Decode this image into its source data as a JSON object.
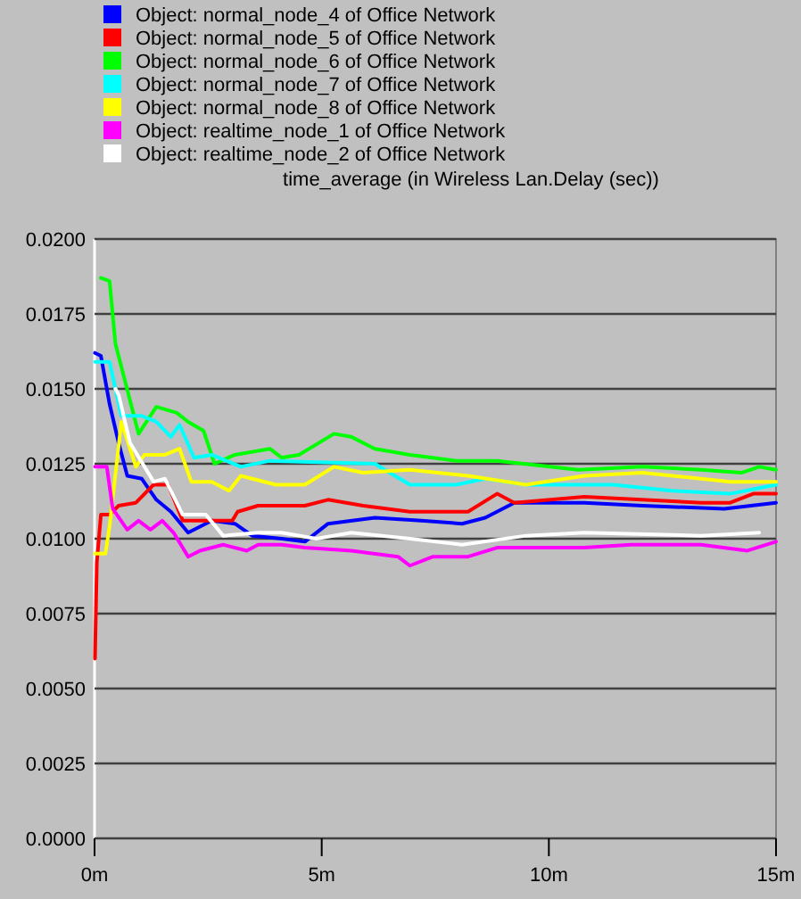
{
  "chart_data": {
    "type": "line",
    "title": "time_average (in Wireless Lan.Delay (sec))",
    "legend": "top",
    "grid": "y",
    "marker": "none",
    "line_style": "solid",
    "xlim": [
      0,
      15
    ],
    "xticks": [
      {
        "value": 0,
        "label": "0m"
      },
      {
        "value": 5,
        "label": "5m"
      },
      {
        "value": 10,
        "label": "10m"
      },
      {
        "value": 15,
        "label": "15m"
      }
    ],
    "ylim": [
      0,
      0.02
    ],
    "yticks": [
      {
        "value": 0,
        "label": "0.0000"
      },
      {
        "value": 0.0025,
        "label": "0.0025"
      },
      {
        "value": 0.005,
        "label": "0.0050"
      },
      {
        "value": 0.0075,
        "label": "0.0075"
      },
      {
        "value": 0.01,
        "label": "0.0100"
      },
      {
        "value": 0.0125,
        "label": "0.0125"
      },
      {
        "value": 0.015,
        "label": "0.0150"
      },
      {
        "value": 0.0175,
        "label": "0.0175"
      },
      {
        "value": 0.02,
        "label": "0.0200"
      }
    ],
    "series": [
      {
        "name": "Object: normal_node_4 of Office Network",
        "color": "#0000ff",
        "x": [
          0.01,
          0.14,
          0.33,
          0.53,
          0.72,
          1.04,
          1.36,
          1.68,
          2.06,
          2.32,
          2.58,
          3.09,
          3.47,
          4.12,
          4.63,
          5.14,
          6.17,
          7.19,
          8.09,
          8.6,
          9.24,
          10.78,
          12.06,
          13.86,
          15
        ],
        "values": [
          0.0162,
          0.0161,
          0.0145,
          0.0132,
          0.0121,
          0.012,
          0.0113,
          0.0109,
          0.0102,
          0.0104,
          0.0106,
          0.0105,
          0.0101,
          0.01,
          0.0099,
          0.0105,
          0.0107,
          0.0106,
          0.0105,
          0.0107,
          0.0112,
          0.0112,
          0.0111,
          0.011,
          0.0112
        ]
      },
      {
        "name": "Object: normal_node_5 of Office Network",
        "color": "#ff0000",
        "x": [
          0.01,
          0.05,
          0.14,
          0.33,
          0.53,
          0.91,
          1.3,
          1.62,
          1.94,
          2.58,
          3.03,
          3.15,
          3.6,
          4.63,
          5.14,
          5.91,
          6.94,
          8.22,
          8.86,
          9.24,
          10.78,
          13.35,
          13.99,
          14.5,
          15
        ],
        "values": [
          0.006,
          0.0092,
          0.0108,
          0.0108,
          0.0111,
          0.0112,
          0.0118,
          0.0118,
          0.0106,
          0.0106,
          0.0106,
          0.0109,
          0.0111,
          0.0111,
          0.0113,
          0.0111,
          0.0109,
          0.0109,
          0.0115,
          0.0112,
          0.0114,
          0.0112,
          0.0112,
          0.0115,
          0.0115
        ]
      },
      {
        "name": "Object: normal_node_6 of Office Network",
        "color": "#00ff00",
        "x": [
          0.14,
          0.33,
          0.46,
          0.97,
          1.36,
          1.81,
          2.06,
          2.4,
          2.64,
          3.09,
          3.86,
          4.12,
          4.5,
          5.27,
          5.65,
          6.17,
          6.94,
          7.96,
          8.86,
          10.65,
          12.06,
          13.35,
          14.24,
          14.63,
          15
        ],
        "values": [
          0.0187,
          0.0186,
          0.0165,
          0.0135,
          0.0144,
          0.0142,
          0.0139,
          0.0136,
          0.0125,
          0.0128,
          0.013,
          0.0127,
          0.0128,
          0.0135,
          0.0134,
          0.013,
          0.0128,
          0.0126,
          0.0126,
          0.0123,
          0.0124,
          0.0123,
          0.0122,
          0.0124,
          0.0123
        ]
      },
      {
        "name": "Object: normal_node_7 of Office Network",
        "color": "#00ffff",
        "x": [
          0.01,
          0.33,
          0.59,
          1.04,
          1.36,
          1.68,
          1.87,
          2.19,
          2.58,
          3.22,
          3.86,
          6.17,
          6.94,
          7.96,
          8.6,
          9.5,
          10.78,
          11.42,
          12.7,
          13.99,
          15
        ],
        "values": [
          0.0159,
          0.0159,
          0.0141,
          0.0141,
          0.0139,
          0.0134,
          0.0138,
          0.0127,
          0.0128,
          0.0124,
          0.0126,
          0.0125,
          0.0118,
          0.0118,
          0.012,
          0.0118,
          0.0118,
          0.0118,
          0.0116,
          0.0115,
          0.0118
        ]
      },
      {
        "name": "Object: normal_node_8 of Office Network",
        "color": "#ffff00",
        "x": [
          0.01,
          0.24,
          0.33,
          0.59,
          0.91,
          1.1,
          1.55,
          1.87,
          2.13,
          2.58,
          2.96,
          3.22,
          3.99,
          4.63,
          5.27,
          5.91,
          6.94,
          8.22,
          9.5,
          10.78,
          12.06,
          13.35,
          13.99,
          15
        ],
        "values": [
          0.0095,
          0.0095,
          0.0104,
          0.0139,
          0.0124,
          0.0128,
          0.0128,
          0.013,
          0.0119,
          0.0119,
          0.0116,
          0.0121,
          0.0118,
          0.0118,
          0.0124,
          0.0122,
          0.0123,
          0.0121,
          0.0118,
          0.0121,
          0.0122,
          0.012,
          0.0119,
          0.0119
        ]
      },
      {
        "name": "Object: realtime_node_1 of Office Network",
        "color": "#ff00ff",
        "x": [
          0.01,
          0.27,
          0.4,
          0.72,
          0.97,
          1.23,
          1.49,
          1.74,
          2.06,
          2.32,
          2.83,
          3.35,
          3.6,
          4.12,
          4.63,
          5.65,
          6.68,
          6.94,
          7.45,
          8.22,
          8.86,
          10.78,
          11.81,
          13.35,
          14.37,
          15
        ],
        "values": [
          0.0124,
          0.0124,
          0.011,
          0.0103,
          0.0106,
          0.0103,
          0.0106,
          0.0102,
          0.0094,
          0.0096,
          0.0098,
          0.0096,
          0.0098,
          0.0098,
          0.0097,
          0.0096,
          0.0094,
          0.0091,
          0.0094,
          0.0094,
          0.0097,
          0.0097,
          0.0098,
          0.0098,
          0.0096,
          0.0099
        ]
      },
      {
        "name": "Object: realtime_node_2 of Office Network",
        "color": "#ffffff",
        "x": [
          0.46,
          0.53,
          0.78,
          1.3,
          1.55,
          1.94,
          2.45,
          2.83,
          3.6,
          4.12,
          4.88,
          5.65,
          6.94,
          8.09,
          9.5,
          10.78,
          13.35,
          14.63
        ],
        "values": [
          0.015,
          0.0148,
          0.0132,
          0.0119,
          0.012,
          0.0108,
          0.0108,
          0.0101,
          0.0102,
          0.0102,
          0.01,
          0.0102,
          0.01,
          0.0098,
          0.0101,
          0.0102,
          0.0101,
          0.0102
        ]
      }
    ]
  }
}
